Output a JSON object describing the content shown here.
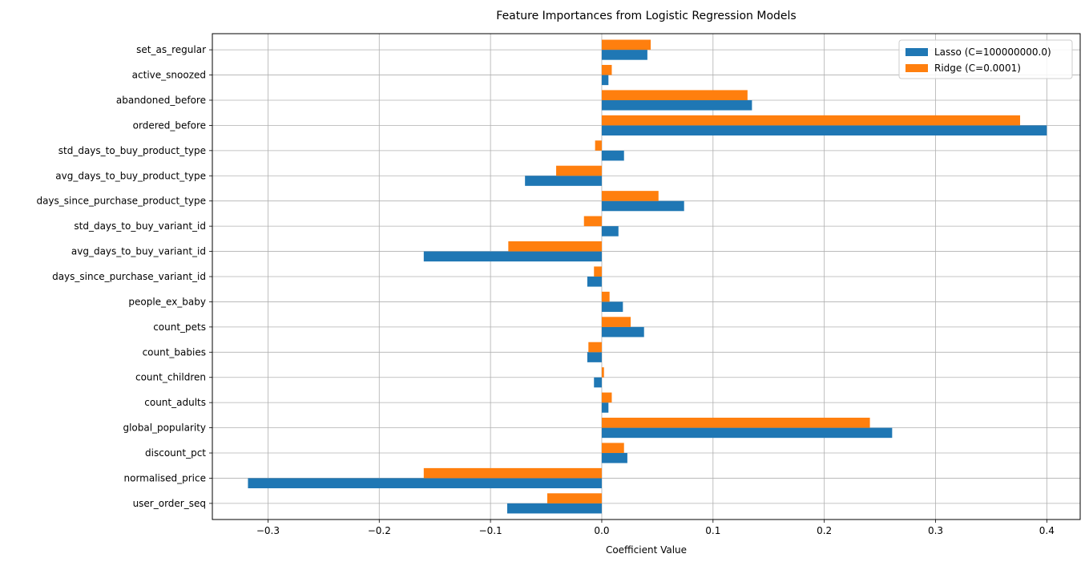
{
  "chart_data": {
    "type": "bar",
    "orientation": "horizontal",
    "title": "Feature Importances from Logistic Regression Models",
    "xlabel": "Coefficient Value",
    "ylabel": "",
    "xlim": [
      -0.35,
      0.43
    ],
    "xticks": [
      -0.3,
      -0.2,
      -0.1,
      0.0,
      0.1,
      0.2,
      0.3,
      0.4
    ],
    "xtick_labels": [
      "−0.3",
      "−0.2",
      "−0.1",
      "0.0",
      "0.1",
      "0.2",
      "0.3",
      "0.4"
    ],
    "grid": true,
    "legend_position": "top-right",
    "categories": [
      "user_order_seq",
      "normalised_price",
      "discount_pct",
      "global_popularity",
      "count_adults",
      "count_children",
      "count_babies",
      "count_pets",
      "people_ex_baby",
      "days_since_purchase_variant_id",
      "avg_days_to_buy_variant_id",
      "std_days_to_buy_variant_id",
      "days_since_purchase_product_type",
      "avg_days_to_buy_product_type",
      "std_days_to_buy_product_type",
      "ordered_before",
      "abandoned_before",
      "active_snoozed",
      "set_as_regular"
    ],
    "series": [
      {
        "name": "Lasso (C=100000000.0)",
        "color": "#1f77b4",
        "values": [
          -0.085,
          -0.318,
          0.023,
          0.261,
          0.006,
          -0.007,
          -0.013,
          0.038,
          0.019,
          -0.013,
          -0.16,
          0.015,
          0.074,
          -0.069,
          0.02,
          0.4,
          0.135,
          0.006,
          0.041
        ]
      },
      {
        "name": "Ridge (C=0.0001)",
        "color": "#ff7f0e",
        "values": [
          -0.049,
          -0.16,
          0.02,
          0.241,
          0.009,
          0.002,
          -0.012,
          0.026,
          0.007,
          -0.007,
          -0.084,
          -0.016,
          0.051,
          -0.041,
          -0.006,
          0.376,
          0.131,
          0.009,
          0.044
        ]
      }
    ]
  }
}
